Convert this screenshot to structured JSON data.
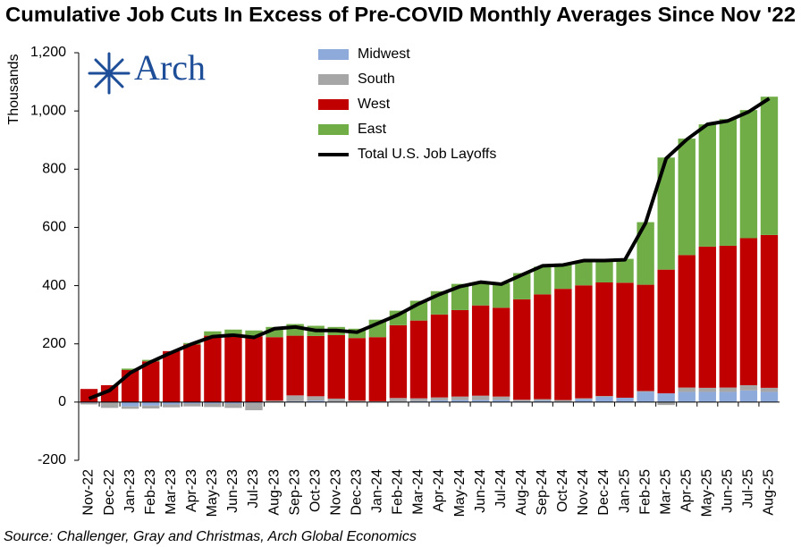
{
  "chart_data": {
    "type": "bar",
    "title": "Cumulative Job Cuts In Excess of Pre-COVID Monthly Averages Since Nov '22",
    "y_label": "Thousands",
    "logo": "Arch",
    "source": "Source: Challenger, Gray and Christmas, Arch Global Economics",
    "categories": [
      "Nov-22",
      "Dec-22",
      "Jan-23",
      "Feb-23",
      "Mar-23",
      "Apr-23",
      "May-23",
      "Jun-23",
      "Jul-23",
      "Aug-23",
      "Sep-23",
      "Oct-23",
      "Nov-23",
      "Dec-23",
      "Jan-24",
      "Feb-24",
      "Mar-24",
      "Apr-24",
      "May-24",
      "Jun-24",
      "Jul-24",
      "Aug-24",
      "Sep-24",
      "Oct-24",
      "Nov-24",
      "Dec-24",
      "Jan-25",
      "Feb-25",
      "Mar-25",
      "Apr-25",
      "May-25",
      "Jun-25",
      "Jul-25",
      "Aug-25"
    ],
    "series": [
      {
        "name": "Midwest",
        "color": "#8eaadb",
        "values": [
          -3,
          -2,
          -15,
          -12,
          -8,
          -5,
          -5,
          -5,
          -3,
          0,
          3,
          5,
          2,
          0,
          0,
          2,
          3,
          6,
          7,
          7,
          7,
          3,
          5,
          2,
          10,
          18,
          15,
          35,
          30,
          35,
          35,
          35,
          40,
          35
        ]
      },
      {
        "name": "South",
        "color": "#a6a6a6",
        "values": [
          -5,
          -18,
          -8,
          -10,
          -10,
          -10,
          -12,
          -15,
          -25,
          5,
          20,
          15,
          10,
          5,
          3,
          12,
          10,
          10,
          12,
          15,
          12,
          5,
          5,
          5,
          3,
          3,
          0,
          3,
          -10,
          15,
          14,
          15,
          18,
          14
        ]
      },
      {
        "name": "West",
        "color": "#c00000",
        "values": [
          45,
          58,
          110,
          140,
          175,
          198,
          228,
          234,
          226,
          218,
          205,
          207,
          218,
          215,
          220,
          250,
          267,
          285,
          297,
          310,
          305,
          345,
          360,
          382,
          388,
          390,
          395,
          365,
          425,
          455,
          485,
          487,
          505,
          525
        ]
      },
      {
        "name": "East",
        "color": "#70ad47",
        "values": [
          0,
          0,
          5,
          5,
          0,
          5,
          15,
          15,
          20,
          35,
          40,
          35,
          28,
          32,
          60,
          50,
          68,
          80,
          90,
          80,
          85,
          90,
          95,
          85,
          85,
          75,
          82,
          215,
          385,
          400,
          420,
          435,
          440,
          475
        ]
      }
    ],
    "line": {
      "name": "Total U.S. Job Layoffs",
      "color": "#000000",
      "values": [
        12,
        40,
        100,
        138,
        170,
        200,
        225,
        230,
        222,
        252,
        258,
        246,
        246,
        240,
        270,
        300,
        338,
        370,
        397,
        412,
        405,
        437,
        468,
        471,
        486,
        486,
        489,
        615,
        837,
        902,
        954,
        966,
        997,
        1043
      ]
    },
    "ylim": [
      -200,
      1200
    ],
    "yticks": [
      -200,
      0,
      200,
      400,
      600,
      800,
      {
        "value": 1000,
        "label": "1,000"
      },
      {
        "value": 1200,
        "label": "1,200"
      }
    ]
  }
}
